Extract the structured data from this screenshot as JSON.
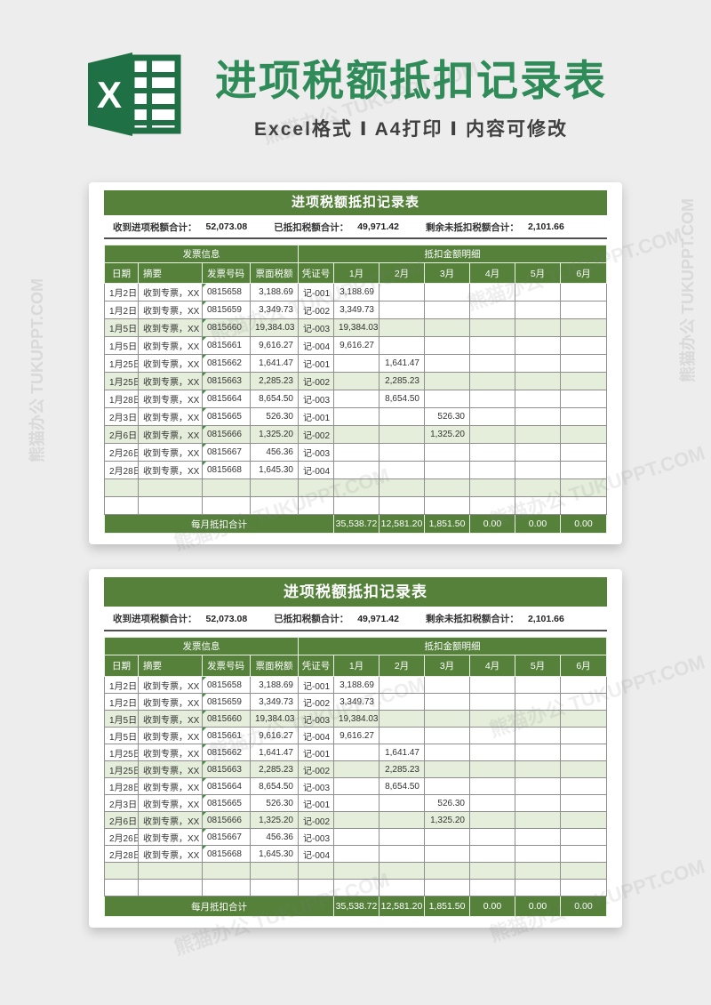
{
  "page_header": {
    "title": "进项税额抵扣记录表",
    "subtitle": "Excel格式 Ⅰ A4打印 Ⅰ 内容可修改",
    "title_color": "#2f8b58"
  },
  "watermark": {
    "text": "熊猫办公 TUKUPPT.COM"
  },
  "colors": {
    "table_green": "#55813b",
    "row_highlight": "#e4eeda",
    "excel_brand_green": "#1f7044",
    "page_background": "#ededed"
  },
  "table": {
    "title": "进项税额抵扣记录表",
    "summary": [
      {
        "label": "收到进项税额合计：",
        "value": "52,073.08"
      },
      {
        "label": "已抵扣税额合计：",
        "value": "49,971.42"
      },
      {
        "label": "剩余未抵扣税额合计：",
        "value": "2,101.66"
      }
    ],
    "group_headers": [
      {
        "label": "发票信息",
        "span": 4
      },
      {
        "label": "抵扣金额明细",
        "span": 7
      }
    ],
    "columns": [
      "日期",
      "摘要",
      "发票号码",
      "票面税额",
      "凭证号",
      "1月",
      "2月",
      "3月",
      "4月",
      "5月",
      "6月"
    ],
    "rows": [
      {
        "date": "1月2日",
        "summary": "收到专票，XX",
        "invoice_no": "0815658",
        "tax": "3,188.69",
        "voucher": "记-001",
        "months": [
          "3,188.69",
          "",
          "",
          "",
          "",
          ""
        ]
      },
      {
        "date": "1月2日",
        "summary": "收到专票，XX",
        "invoice_no": "0815659",
        "tax": "3,349.73",
        "voucher": "记-002",
        "months": [
          "3,349.73",
          "",
          "",
          "",
          "",
          ""
        ]
      },
      {
        "date": "1月5日",
        "summary": "收到专票，XX",
        "invoice_no": "0815660",
        "tax": "19,384.03",
        "voucher": "记-003",
        "months": [
          "19,384.03",
          "",
          "",
          "",
          "",
          ""
        ]
      },
      {
        "date": "1月5日",
        "summary": "收到专票，XX",
        "invoice_no": "0815661",
        "tax": "9,616.27",
        "voucher": "记-004",
        "months": [
          "9,616.27",
          "",
          "",
          "",
          "",
          ""
        ]
      },
      {
        "date": "1月25日",
        "summary": "收到专票，XX",
        "invoice_no": "0815662",
        "tax": "1,641.47",
        "voucher": "记-001",
        "months": [
          "",
          "1,641.47",
          "",
          "",
          "",
          ""
        ]
      },
      {
        "date": "1月25日",
        "summary": "收到专票，XX",
        "invoice_no": "0815663",
        "tax": "2,285.23",
        "voucher": "记-002",
        "months": [
          "",
          "2,285.23",
          "",
          "",
          "",
          ""
        ]
      },
      {
        "date": "1月28日",
        "summary": "收到专票，XX",
        "invoice_no": "0815664",
        "tax": "8,654.50",
        "voucher": "记-003",
        "months": [
          "",
          "8,654.50",
          "",
          "",
          "",
          ""
        ]
      },
      {
        "date": "2月3日",
        "summary": "收到专票，XX",
        "invoice_no": "0815665",
        "tax": "526.30",
        "voucher": "记-001",
        "months": [
          "",
          "",
          "526.30",
          "",
          "",
          ""
        ]
      },
      {
        "date": "2月6日",
        "summary": "收到专票，XX",
        "invoice_no": "0815666",
        "tax": "1,325.20",
        "voucher": "记-002",
        "months": [
          "",
          "",
          "1,325.20",
          "",
          "",
          ""
        ]
      },
      {
        "date": "2月26日",
        "summary": "收到专票，XX",
        "invoice_no": "0815667",
        "tax": "456.36",
        "voucher": "记-003",
        "months": [
          "",
          "",
          "",
          "",
          "",
          ""
        ]
      },
      {
        "date": "2月28日",
        "summary": "收到专票，XX",
        "invoice_no": "0815668",
        "tax": "1,645.30",
        "voucher": "记-004",
        "months": [
          "",
          "",
          "",
          "",
          "",
          ""
        ]
      },
      {
        "date": "",
        "summary": "",
        "invoice_no": "",
        "tax": "",
        "voucher": "",
        "months": [
          "",
          "",
          "",
          "",
          "",
          ""
        ]
      },
      {
        "date": "",
        "summary": "",
        "invoice_no": "",
        "tax": "",
        "voucher": "",
        "months": [
          "",
          "",
          "",
          "",
          "",
          ""
        ]
      }
    ],
    "footer": {
      "label": "每月抵扣合计",
      "values": [
        "35,538.72",
        "12,581.20",
        "1,851.50",
        "0.00",
        "0.00",
        "0.00"
      ]
    }
  }
}
